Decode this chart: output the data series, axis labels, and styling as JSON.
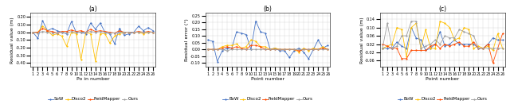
{
  "subplot_a": {
    "title": "(a)",
    "xlabel": "Po in number",
    "ylabel": "Residual value (m)",
    "ylim": [
      -0.45,
      0.25
    ],
    "yticks": [
      -0.4,
      -0.3,
      -0.2,
      -0.1,
      0.0,
      0.1,
      0.2
    ],
    "n_points": 26,
    "series": {
      "SoW": [
        0.0,
        -0.08,
        0.15,
        0.02,
        0.05,
        0.02,
        0.0,
        -0.02,
        0.14,
        0.0,
        0.0,
        -0.02,
        0.12,
        0.04,
        0.12,
        0.0,
        -0.02,
        -0.15,
        0.05,
        -0.04,
        -0.02,
        0.0,
        0.08,
        0.02,
        0.06,
        0.02
      ],
      "Disco2": [
        0.0,
        0.0,
        0.08,
        0.02,
        -0.04,
        -0.02,
        -0.05,
        -0.18,
        0.0,
        -0.02,
        -0.35,
        0.0,
        -0.02,
        -0.37,
        -0.02,
        -0.02,
        -0.14,
        -0.05,
        -0.02,
        0.0,
        0.0,
        0.0,
        0.0,
        -0.02,
        0.0,
        0.0
      ],
      "FieldMapper": [
        0.0,
        0.0,
        0.05,
        0.02,
        0.01,
        -0.01,
        0.01,
        0.01,
        0.03,
        0.01,
        0.02,
        0.0,
        0.04,
        0.01,
        0.02,
        0.01,
        0.0,
        -0.01,
        0.02,
        0.0,
        0.0,
        0.0,
        0.01,
        0.0,
        0.01,
        0.0
      ],
      "Ours": [
        0.0,
        -0.01,
        0.01,
        0.0,
        -0.01,
        -0.01,
        0.0,
        -0.01,
        0.01,
        0.0,
        0.0,
        0.0,
        0.01,
        0.0,
        0.01,
        0.0,
        -0.01,
        -0.01,
        0.0,
        0.0,
        0.0,
        0.0,
        0.0,
        0.0,
        0.0,
        0.0
      ]
    },
    "colors": {
      "SoW": "#4472C4",
      "Disco2": "#FFC000",
      "FieldMapper": "#FF4B00",
      "Ours": "#A0A0A0"
    },
    "legend": [
      "SoW",
      "Disco2",
      "FieldMapper",
      "Ours"
    ]
  },
  "subplot_b": {
    "title": "(b)",
    "xlabel": "Point number",
    "ylabel": "Residual error (°)",
    "ylim": [
      -0.13,
      0.27
    ],
    "yticks": [
      -0.1,
      -0.05,
      0.0,
      0.05,
      0.1,
      0.15,
      0.2,
      0.25
    ],
    "n_points": 26,
    "series": {
      "BoW": [
        0.07,
        0.06,
        -0.09,
        -0.01,
        0.01,
        0.01,
        0.13,
        0.12,
        0.11,
        0.0,
        0.21,
        0.13,
        0.12,
        0.0,
        0.01,
        -0.01,
        -0.01,
        -0.06,
        -0.01,
        0.01,
        -0.02,
        -0.07,
        0.0,
        0.07,
        0.01,
        0.03
      ],
      "Disco2": [
        0.0,
        0.0,
        0.0,
        0.02,
        0.03,
        0.03,
        0.04,
        0.01,
        0.02,
        0.07,
        0.06,
        0.02,
        0.02,
        0.0,
        0.01,
        0.0,
        0.0,
        0.0,
        0.0,
        -0.02,
        0.01,
        -0.01,
        0.01,
        0.0,
        0.02,
        0.0
      ],
      "FieldMapper": [
        0.0,
        0.0,
        0.0,
        0.01,
        0.02,
        0.01,
        0.02,
        0.01,
        0.0,
        0.03,
        0.03,
        0.02,
        0.0,
        0.0,
        0.0,
        0.0,
        0.0,
        0.0,
        0.0,
        -0.01,
        0.0,
        0.0,
        0.0,
        0.0,
        0.01,
        0.0
      ],
      "Ours": [
        0.0,
        0.0,
        0.0,
        0.0,
        -0.01,
        0.0,
        0.0,
        0.0,
        0.0,
        0.0,
        0.0,
        0.0,
        0.0,
        0.0,
        0.0,
        0.0,
        0.0,
        0.0,
        0.0,
        0.0,
        0.0,
        0.0,
        0.0,
        0.0,
        0.0,
        0.0
      ]
    },
    "colors": {
      "BoW": "#4472C4",
      "Disco2": "#FFC000",
      "FieldMapper": "#FF4B00",
      "Ours": "#A0A0A0"
    },
    "legend": [
      "BoW",
      "Disco2",
      "FieldMapper",
      "Ours"
    ]
  },
  "subplot_c": {
    "title": "(c)",
    "xlabel": "Point number",
    "ylabel": "Residual value (m)",
    "ylim": [
      -0.09,
      0.17
    ],
    "yticks": [
      -0.06,
      -0.02,
      0.02,
      0.06,
      0.1,
      0.14
    ],
    "n_points": 26,
    "series": {
      "BoW": [
        0.0,
        0.0,
        0.0,
        0.03,
        0.01,
        0.0,
        0.1,
        0.05,
        0.04,
        -0.01,
        0.0,
        0.02,
        0.08,
        0.01,
        0.02,
        0.04,
        0.02,
        0.02,
        0.02,
        0.02,
        0.0,
        0.0,
        0.02,
        0.05,
        0.04,
        0.04
      ],
      "Disco2": [
        0.0,
        0.01,
        0.02,
        0.1,
        0.09,
        -0.04,
        0.1,
        0.12,
        0.0,
        0.09,
        0.0,
        0.0,
        0.13,
        0.12,
        0.1,
        0.04,
        0.05,
        0.1,
        0.09,
        0.0,
        0.01,
        0.0,
        0.01,
        -0.01,
        0.07,
        0.0
      ],
      "FieldMapper": [
        0.02,
        0.01,
        0.0,
        0.0,
        -0.05,
        -0.05,
        -0.01,
        -0.01,
        -0.01,
        -0.01,
        0.01,
        0.02,
        0.0,
        0.02,
        0.01,
        0.02,
        0.03,
        0.01,
        0.01,
        0.03,
        0.0,
        0.0,
        0.02,
        -0.07,
        0.0,
        0.07
      ],
      "Ours": [
        0.0,
        0.12,
        0.0,
        0.01,
        0.06,
        0.06,
        0.13,
        0.13,
        0.0,
        0.01,
        0.02,
        0.04,
        0.02,
        0.06,
        0.05,
        0.05,
        0.09,
        0.08,
        0.07,
        0.06,
        0.0,
        0.0,
        0.0,
        0.0,
        0.0,
        0.0
      ]
    },
    "colors": {
      "BoW": "#4472C4",
      "Disco2": "#FFC000",
      "FieldMapper": "#FF4B00",
      "Ours": "#A0A0A0"
    },
    "legend": [
      "BoW",
      "Disco2",
      "FieldMapper",
      "Ours"
    ]
  },
  "fig_width": 6.4,
  "fig_height": 1.36,
  "dpi": 100,
  "legend_fontsize": 4.0,
  "axis_label_fontsize": 4.5,
  "tick_fontsize": 3.5,
  "title_fontsize": 5.5,
  "linewidth": 0.6,
  "markersize": 1.2
}
